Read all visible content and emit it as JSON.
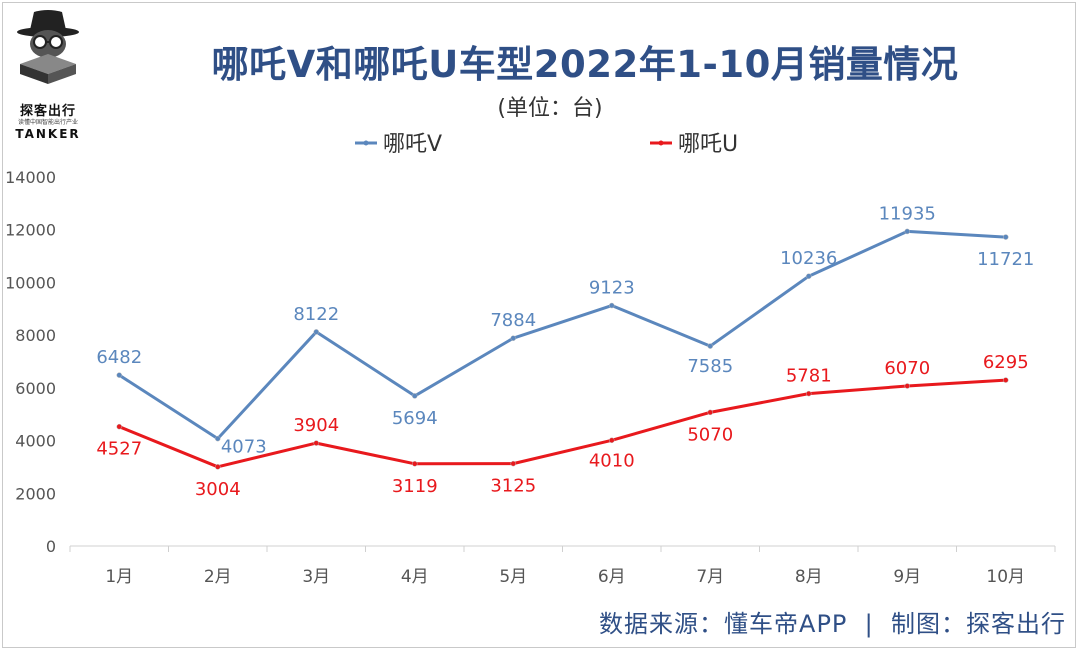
{
  "logo": {
    "name": "探客出行",
    "tagline": "读懂中国智能出行产业",
    "english": "TANKER"
  },
  "footer": "数据来源：懂车帝APP  |  制图：探客出行",
  "colors": {
    "series_v": "#5b87bd",
    "series_u": "#e8191d",
    "title": "#2f4f86",
    "grid_axis": "#d0d0d0"
  },
  "chart_data": {
    "type": "line",
    "title": "哪吒V和哪吒U车型2022年1-10月销量情况",
    "subtitle": "(单位：台)",
    "categories": [
      "1月",
      "2月",
      "3月",
      "4月",
      "5月",
      "6月",
      "7月",
      "8月",
      "9月",
      "10月"
    ],
    "series": [
      {
        "name": "哪吒V",
        "color": "#5b87bd",
        "values": [
          6482,
          4073,
          8122,
          5694,
          7884,
          9123,
          7585,
          10236,
          11935,
          11721
        ]
      },
      {
        "name": "哪吒U",
        "color": "#e8191d",
        "values": [
          4527,
          3004,
          3904,
          3119,
          3125,
          4010,
          5070,
          5781,
          6070,
          6295
        ]
      }
    ],
    "ylim": [
      0,
      14000
    ],
    "yticks": [
      0,
      2000,
      4000,
      6000,
      8000,
      10000,
      12000,
      14000
    ],
    "grid": false,
    "legend": "top-center"
  }
}
